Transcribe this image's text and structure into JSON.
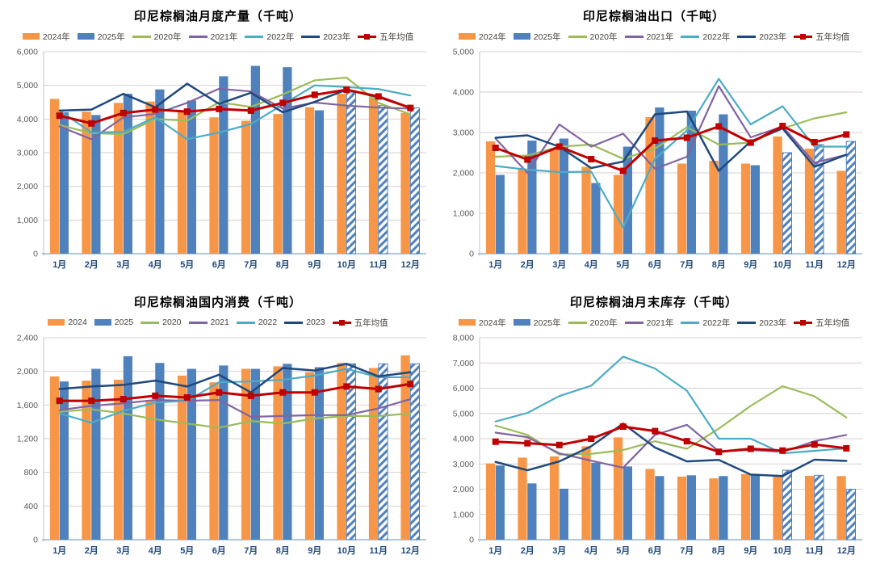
{
  "page": {
    "background": "#ffffff"
  },
  "colors": {
    "bar_2024": "#F79646",
    "bar_2025": "#4F81BD",
    "line_2020": "#9BBB59",
    "line_2021": "#8064A2",
    "line_2022": "#4BACC6",
    "line_2023": "#1F497D",
    "line_avg": "#C00000",
    "grid": "#D9CFCF",
    "baseline": "#95B3D7",
    "left_axis": "#C6C6C6",
    "ytick_label": "#595959",
    "xtick_label": "#1F497D",
    "title_text": "#000000",
    "legend_text": "#46413C"
  },
  "chart_data": [
    {
      "type": "combo",
      "title": "印尼棕榈油月度产量（千吨）",
      "categories": [
        "1月",
        "2月",
        "3月",
        "4月",
        "5月",
        "6月",
        "7月",
        "8月",
        "9月",
        "10月",
        "11月",
        "12月"
      ],
      "ylim": [
        0,
        6000
      ],
      "ytick_step": 1000,
      "grid": true,
      "legend_position": "top",
      "series": [
        {
          "name": "2024年",
          "kind": "bar",
          "color": "#F79646",
          "values": [
            4600,
            4220,
            4480,
            4520,
            4220,
            4050,
            3950,
            4150,
            4350,
            4750,
            4650,
            4180
          ]
        },
        {
          "name": "2025年",
          "kind": "bar",
          "color": "#4F81BD",
          "hatch_from": 9,
          "values": [
            4200,
            4120,
            4750,
            4880,
            4550,
            5270,
            5580,
            5540,
            4260,
            4780,
            4400,
            4330
          ]
        },
        {
          "name": "2020年",
          "kind": "line",
          "color": "#9BBB59",
          "values": [
            3820,
            3580,
            3550,
            4000,
            3950,
            4500,
            4360,
            4730,
            5150,
            5230,
            4480,
            4140
          ]
        },
        {
          "name": "2021年",
          "kind": "line",
          "color": "#8064A2",
          "values": [
            3780,
            3400,
            4050,
            4150,
            4480,
            4900,
            4820,
            4310,
            4490,
            4400,
            4340,
            4310
          ]
        },
        {
          "name": "2022年",
          "kind": "line",
          "color": "#4BACC6",
          "values": [
            4250,
            3600,
            3620,
            4050,
            3400,
            3600,
            3850,
            4430,
            5000,
            4950,
            4890,
            4700
          ]
        },
        {
          "name": "2023年",
          "kind": "line",
          "color": "#1F497D",
          "line_width": 2.5,
          "values": [
            4250,
            4280,
            4750,
            4350,
            5050,
            4450,
            4780,
            4200,
            4510,
            4870,
            4650,
            4330
          ]
        },
        {
          "name": "五年均值",
          "kind": "line",
          "color": "#C00000",
          "marker": "square",
          "line_width": 3,
          "values": [
            4100,
            3870,
            4180,
            4280,
            4220,
            4300,
            4250,
            4480,
            4720,
            4870,
            4670,
            4330
          ]
        }
      ]
    },
    {
      "type": "combo",
      "title": "印尼棕榈油出口（千吨）",
      "categories": [
        "1月",
        "2月",
        "3月",
        "4月",
        "5月",
        "6月",
        "7月",
        "8月",
        "9月",
        "10月",
        "11月",
        "12月"
      ],
      "ylim": [
        0,
        5000
      ],
      "ytick_step": 1000,
      "grid": true,
      "legend_position": "top",
      "series": [
        {
          "name": "2024年",
          "kind": "bar",
          "color": "#F79646",
          "values": [
            2780,
            2100,
            2580,
            2150,
            1950,
            3380,
            2230,
            2300,
            2230,
            2900,
            2600,
            2050
          ]
        },
        {
          "name": "2025年",
          "kind": "bar",
          "color": "#4F81BD",
          "hatch_from": 9,
          "values": [
            1950,
            2800,
            2850,
            1750,
            2650,
            3620,
            3540,
            3450,
            2190,
            2500,
            2700,
            2780
          ]
        },
        {
          "name": "2020年",
          "kind": "line",
          "color": "#9BBB59",
          "values": [
            2400,
            2430,
            2650,
            2700,
            2350,
            2600,
            3130,
            2700,
            2750,
            3100,
            3350,
            3500
          ]
        },
        {
          "name": "2021年",
          "kind": "line",
          "color": "#8064A2",
          "values": [
            2850,
            2000,
            3200,
            2650,
            2970,
            2100,
            2400,
            4150,
            2880,
            3150,
            2250,
            2450
          ]
        },
        {
          "name": "2022年",
          "kind": "line",
          "color": "#4BACC6",
          "values": [
            2170,
            2080,
            2020,
            2030,
            650,
            2350,
            3050,
            4330,
            3200,
            3650,
            2650,
            2650
          ]
        },
        {
          "name": "2023年",
          "kind": "line",
          "color": "#1F497D",
          "line_width": 2.5,
          "values": [
            2870,
            2930,
            2650,
            2120,
            2280,
            3450,
            3520,
            2050,
            2780,
            3100,
            2150,
            2450
          ]
        },
        {
          "name": "五年均值",
          "kind": "line",
          "color": "#C00000",
          "marker": "square",
          "line_width": 3,
          "values": [
            2620,
            2330,
            2650,
            2340,
            2050,
            2800,
            2870,
            3150,
            2750,
            3160,
            2760,
            2950
          ]
        }
      ]
    },
    {
      "type": "combo",
      "title": "印尼棕榈油国内消费（千吨）",
      "categories": [
        "1月",
        "2月",
        "3月",
        "4月",
        "5月",
        "6月",
        "7月",
        "8月",
        "9月",
        "10月",
        "11月",
        "12月"
      ],
      "ylim": [
        0,
        2400
      ],
      "ytick_step": 400,
      "grid": true,
      "legend_position": "top",
      "series": [
        {
          "name": "2024",
          "kind": "bar",
          "color": "#F79646",
          "values": [
            1940,
            1890,
            1900,
            1650,
            1950,
            1870,
            2030,
            2060,
            1990,
            2100,
            2040,
            2190
          ]
        },
        {
          "name": "2025",
          "kind": "bar",
          "color": "#4F81BD",
          "hatch_from": 9,
          "values": [
            1880,
            2030,
            2180,
            2100,
            2030,
            2070,
            2030,
            2090,
            2050,
            2090,
            2090,
            2090
          ]
        },
        {
          "name": "2020",
          "kind": "line",
          "color": "#9BBB59",
          "values": [
            1520,
            1550,
            1500,
            1430,
            1380,
            1330,
            1410,
            1380,
            1440,
            1470,
            1470,
            1500
          ]
        },
        {
          "name": "2021",
          "kind": "line",
          "color": "#8064A2",
          "values": [
            1540,
            1590,
            1620,
            1660,
            1650,
            1660,
            1460,
            1470,
            1480,
            1480,
            1560,
            1670
          ]
        },
        {
          "name": "2022",
          "kind": "line",
          "color": "#4BACC6",
          "values": [
            1500,
            1390,
            1530,
            1630,
            1650,
            1870,
            1880,
            1900,
            1950,
            2030,
            1930,
            1930
          ]
        },
        {
          "name": "2023",
          "kind": "line",
          "color": "#1F497D",
          "line_width": 2.5,
          "values": [
            1790,
            1820,
            1840,
            1890,
            1820,
            1960,
            1750,
            2040,
            2010,
            2090,
            1940,
            1990
          ]
        },
        {
          "name": "五年均值",
          "kind": "line",
          "color": "#C00000",
          "marker": "square",
          "line_width": 3,
          "values": [
            1650,
            1650,
            1670,
            1710,
            1690,
            1750,
            1710,
            1750,
            1750,
            1820,
            1790,
            1850
          ]
        }
      ]
    },
    {
      "type": "combo",
      "title": "印尼棕榈油月末库存（千吨）",
      "categories": [
        "1月",
        "2月",
        "3月",
        "4月",
        "5月",
        "6月",
        "7月",
        "8月",
        "9月",
        "10月",
        "11月",
        "12月"
      ],
      "ylim": [
        0,
        8000
      ],
      "ytick_step": 1000,
      "grid": true,
      "legend_position": "top",
      "series": [
        {
          "name": "2024年",
          "kind": "bar",
          "color": "#F79646",
          "values": [
            3020,
            3250,
            3300,
            3700,
            4050,
            2800,
            2500,
            2430,
            2600,
            2500,
            2530,
            2520
          ]
        },
        {
          "name": "2025年",
          "kind": "bar",
          "color": "#4F81BD",
          "hatch_from": 9,
          "values": [
            2940,
            2230,
            2020,
            3050,
            2900,
            2520,
            2550,
            2520,
            2600,
            2750,
            2550,
            2000
          ]
        },
        {
          "name": "2020年",
          "kind": "line",
          "color": "#9BBB59",
          "values": [
            4520,
            4150,
            3370,
            3400,
            3550,
            3900,
            3600,
            4400,
            5300,
            6080,
            5680,
            4840
          ]
        },
        {
          "name": "2021年",
          "kind": "line",
          "color": "#8064A2",
          "values": [
            4240,
            4060,
            3420,
            3130,
            2850,
            4150,
            4550,
            3500,
            3550,
            3480,
            3900,
            4150
          ]
        },
        {
          "name": "2022年",
          "kind": "line",
          "color": "#4BACC6",
          "values": [
            4680,
            5020,
            5690,
            6100,
            7250,
            6780,
            5900,
            4000,
            4000,
            3420,
            3520,
            3620
          ]
        },
        {
          "name": "2023年",
          "kind": "line",
          "color": "#1F497D",
          "line_width": 2.5,
          "values": [
            3080,
            2750,
            3100,
            3700,
            4600,
            3650,
            3100,
            3160,
            2580,
            2520,
            3170,
            3120
          ]
        },
        {
          "name": "五年均值",
          "kind": "line",
          "color": "#C00000",
          "marker": "square",
          "line_width": 3,
          "values": [
            3880,
            3820,
            3750,
            4000,
            4480,
            4300,
            3900,
            3480,
            3600,
            3530,
            3770,
            3620
          ]
        }
      ]
    }
  ]
}
